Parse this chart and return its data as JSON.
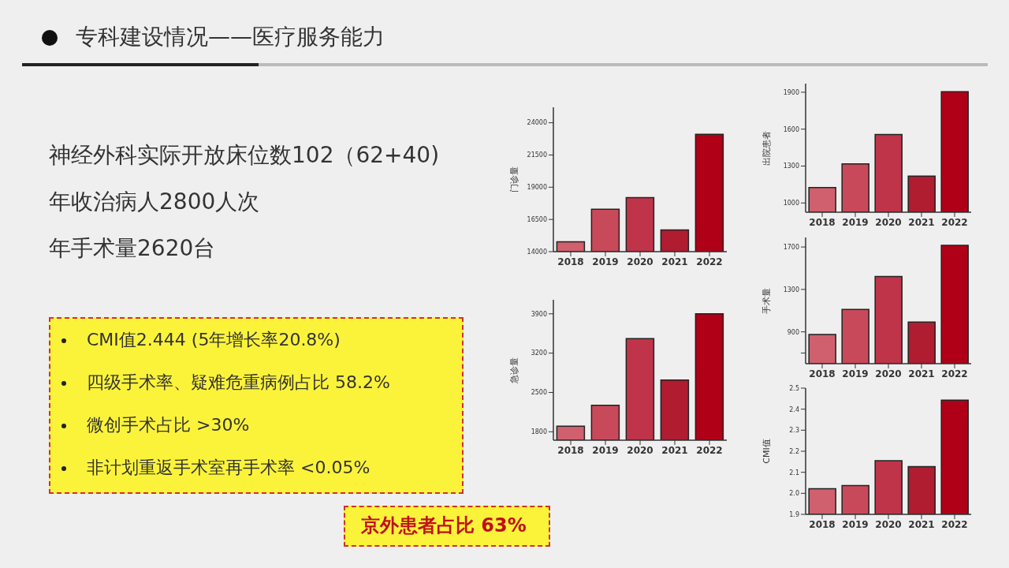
{
  "chart_data": [
    {
      "type": "other",
      "title": "专科建设情况——医疗服务能力",
      "annotations": [
        "神经外科实际开放床位数102（62+40)",
        "年收治病人2800人次",
        "年手术量2620台",
        "CMI值2.444 (5年增长率20.8%)",
        "四级手术率、疑难危重病例占比 58.2%",
        "微创手术占比 >30%",
        "非计划重返手术室再手术率 <0.05%",
        "京外患者占比 63%"
      ]
    },
    {
      "type": "bar",
      "ylabel": "门诊量",
      "categories": [
        "2018",
        "2019",
        "2020",
        "2021",
        "2022"
      ],
      "values": [
        14760,
        17290,
        18190,
        15680,
        23100
      ],
      "colors": [
        "#d0606e",
        "#c84a5a",
        "#c0344a",
        "#b01c30",
        "#b00018"
      ],
      "ylim": [
        14000,
        25200
      ],
      "yticks": [
        14000,
        16500,
        19000,
        21500,
        24000
      ],
      "grid": false
    },
    {
      "type": "bar",
      "ylabel": "出院患者",
      "categories": [
        "2018",
        "2019",
        "2020",
        "2021",
        "2022"
      ],
      "values": [
        1126,
        1317,
        1557,
        1219,
        1905
      ],
      "colors": [
        "#d0606e",
        "#c84a5a",
        "#c0344a",
        "#b01c30",
        "#b00018"
      ],
      "ylim": [
        925,
        1970
      ],
      "yticks": [
        1000,
        1300,
        1600,
        1900
      ],
      "grid": false
    },
    {
      "type": "bar",
      "ylabel": "急诊量",
      "categories": [
        "2018",
        "2019",
        "2020",
        "2021",
        "2022"
      ],
      "values": [
        1900,
        2270,
        3460,
        2720,
        3900
      ],
      "colors": [
        "#d0606e",
        "#c84a5a",
        "#c0344a",
        "#b01c30",
        "#b00018"
      ],
      "ylim": [
        1650,
        4150
      ],
      "yticks": [
        1800,
        2500,
        3200,
        3900
      ],
      "grid": false
    },
    {
      "type": "bar",
      "ylabel": "手术量",
      "categories": [
        "2018",
        "2019",
        "2020",
        "2021",
        "2022"
      ],
      "values": [
        875,
        1111,
        1422,
        992,
        1715
      ],
      "colors": [
        "#d0606e",
        "#c84a5a",
        "#c0344a",
        "#b01c30",
        "#b00018"
      ],
      "ylim": [
        600,
        1790
      ],
      "yticks": [
        {
          "value": 700,
          "label": null
        },
        900,
        1300,
        1700
      ],
      "grid": false
    },
    {
      "type": "bar",
      "ylabel": "CMI值",
      "categories": [
        "2018",
        "2019",
        "2020",
        "2021",
        "2022"
      ],
      "values": [
        2.022,
        2.037,
        2.155,
        2.127,
        2.443
      ],
      "colors": [
        "#d0606e",
        "#c84a5a",
        "#c0344a",
        "#b01c30",
        "#b00018"
      ],
      "ylim": [
        1.9,
        2.5
      ],
      "yticks": [
        1.9,
        {
          "value": 2,
          "label": "2.0"
        },
        2.1,
        2.2,
        2.3,
        2.4,
        2.5
      ],
      "grid": false
    }
  ]
}
